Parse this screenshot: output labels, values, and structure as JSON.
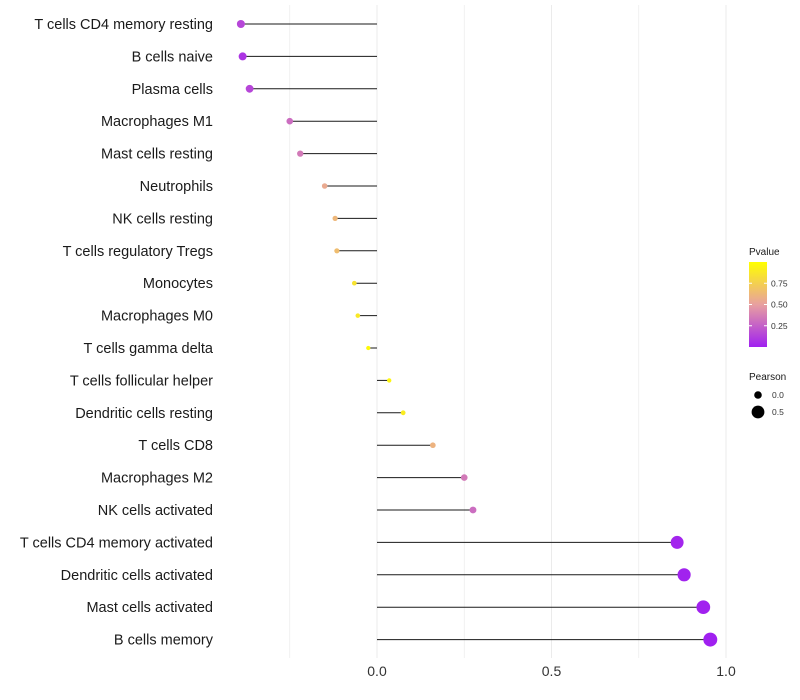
{
  "chart_data": {
    "type": "lollipop",
    "title": "",
    "xlabel": "",
    "ylabel": "",
    "xlim": [
      -0.45,
      1.02
    ],
    "x_ticks": [
      0.0,
      0.5,
      1.0
    ],
    "x_tick_labels": [
      "0.0",
      "0.5",
      "1.0"
    ],
    "categories": [
      "T cells CD4 memory resting",
      "B cells naive",
      "Plasma cells",
      "Macrophages M1",
      "Mast cells resting",
      "Neutrophils",
      "NK cells resting",
      "T cells regulatory  Tregs",
      "Monocytes",
      "Macrophages M0",
      "T cells gamma delta",
      "T cells follicular helper",
      "Dendritic cells resting",
      "T cells CD8",
      "Macrophages M2",
      "NK cells activated",
      "T cells CD4 memory activated",
      "Dendritic cells activated",
      "Mast cells activated",
      "B cells memory"
    ],
    "pearson": [
      -0.39,
      -0.385,
      -0.365,
      -0.25,
      -0.22,
      -0.15,
      -0.12,
      -0.115,
      -0.065,
      -0.055,
      -0.025,
      0.035,
      0.075,
      0.16,
      0.25,
      0.275,
      0.86,
      0.88,
      0.935,
      0.955
    ],
    "pvalue": [
      0.15,
      0.08,
      0.15,
      0.3,
      0.35,
      0.55,
      0.62,
      0.65,
      0.85,
      0.88,
      0.97,
      0.95,
      0.9,
      0.6,
      0.35,
      0.3,
      0.02,
      0.01,
      0.005,
      0.001
    ],
    "legend": {
      "color_title": "Pvalue",
      "color_ticks": [
        0.25,
        0.5,
        0.75
      ],
      "color_tick_labels": [
        "0.25",
        "0.50",
        "0.75"
      ],
      "color_range": [
        0.0,
        1.0
      ],
      "color_low": "#a020f0",
      "color_mid": "#e8a0a0",
      "color_high": "#ffff00",
      "size_title": "Pearson",
      "size_values": [
        0.0,
        0.5
      ],
      "size_labels": [
        "0.0",
        "0.5"
      ],
      "placement": "right"
    }
  }
}
